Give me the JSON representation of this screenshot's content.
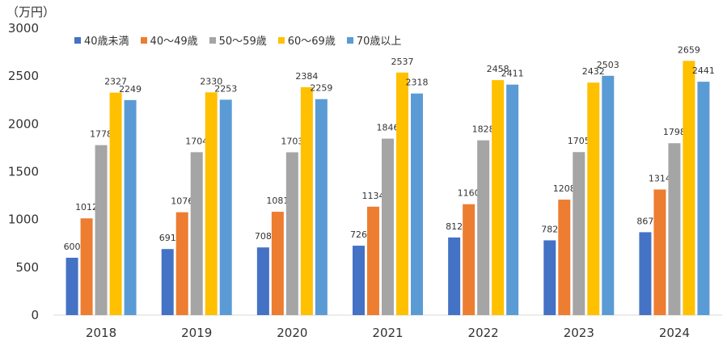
{
  "chart_data": {
    "type": "bar",
    "unit_label": "（万円）",
    "categories": [
      "2018",
      "2019",
      "2020",
      "2021",
      "2022",
      "2023",
      "2024"
    ],
    "ylim": [
      0,
      3000
    ],
    "yticks": [
      "0",
      "500",
      "1000",
      "1500",
      "2000",
      "2500",
      "3000"
    ],
    "grid": false,
    "legend_position": "top-left",
    "series": [
      {
        "name": "40歳未満",
        "color": "#4472C4",
        "values": [
          600,
          691,
          708,
          726,
          812,
          782,
          867
        ]
      },
      {
        "name": "40～49歳",
        "color": "#ED7D31",
        "values": [
          1012,
          1076,
          1081,
          1134,
          1160,
          1208,
          1314
        ]
      },
      {
        "name": "50～59歳",
        "color": "#A5A5A5",
        "values": [
          1778,
          1704,
          1703,
          1846,
          1828,
          1705,
          1798
        ]
      },
      {
        "name": "60～69歳",
        "color": "#FFC000",
        "values": [
          2327,
          2330,
          2384,
          2537,
          2458,
          2432,
          2659
        ]
      },
      {
        "name": "70歳以上",
        "color": "#5B9BD5",
        "values": [
          2249,
          2253,
          2259,
          2318,
          2411,
          2503,
          2441
        ]
      }
    ]
  }
}
